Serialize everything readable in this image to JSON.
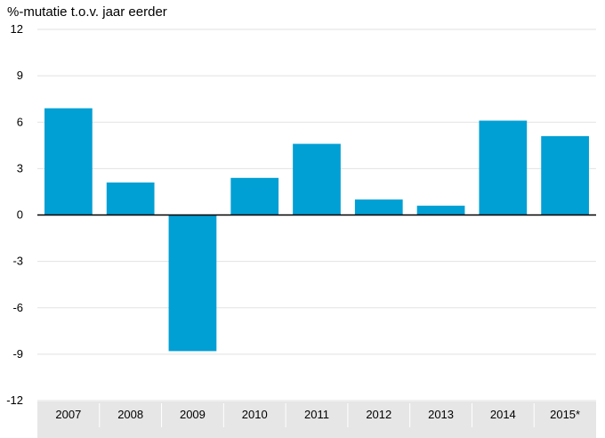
{
  "chart_data": {
    "type": "bar",
    "ylabel": "%-mutatie t.o.v. jaar eerder",
    "categories": [
      "2007",
      "2008",
      "2009",
      "2010",
      "2011",
      "2012",
      "2013",
      "2014",
      "2015*"
    ],
    "values": [
      6.9,
      2.1,
      -8.8,
      2.4,
      4.6,
      1.0,
      0.6,
      6.1,
      5.1
    ],
    "ylim": [
      -12,
      12
    ],
    "yticks": [
      12,
      9,
      6,
      3,
      0,
      -3,
      -6,
      -9,
      -12
    ],
    "grid": true,
    "bar_color": "#009fd4",
    "axis_band_color": "#e6e6e6",
    "zero_line_color": "#000000"
  }
}
